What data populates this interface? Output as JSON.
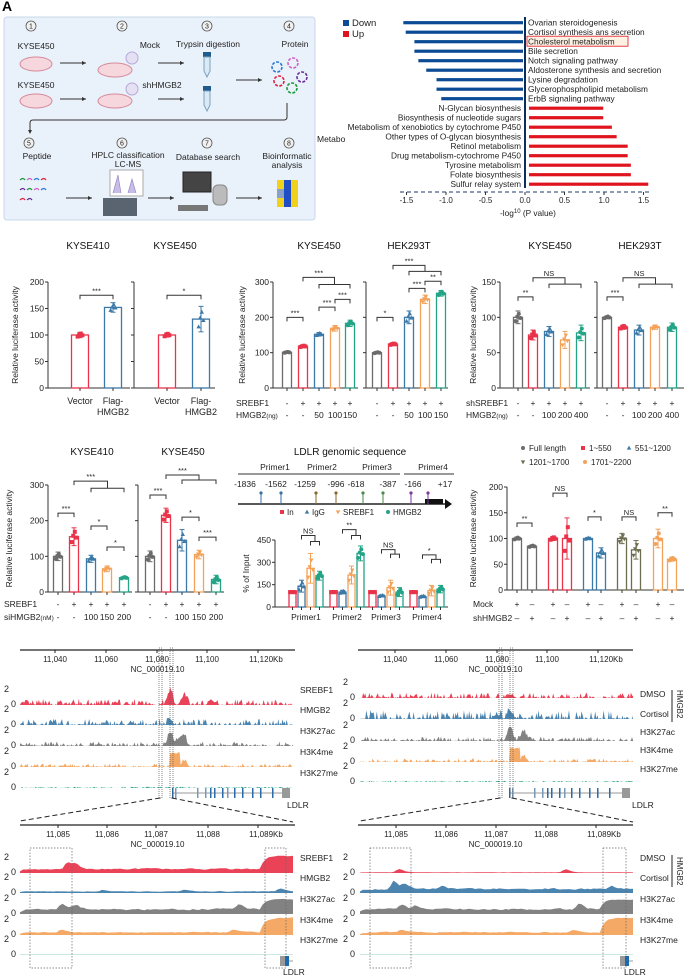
{
  "panel_labels": {
    "a": "A"
  },
  "workflow": {
    "steps": [
      "1",
      "2",
      "3",
      "4",
      "5",
      "6",
      "7",
      "8"
    ],
    "kyse450_top": "KYSE450",
    "kyse450_bottom": "KYSE450",
    "mock": "Mock",
    "shhmgb2": "shHMGB2",
    "trypsin": "Trypsin digestion",
    "protein": "Protein",
    "peptide": "Peptide",
    "hplc_line1": "HPLC classification",
    "hplc_line2": "LC-MS",
    "database": "Database search",
    "bioinfo_line1": "Bioinformatic",
    "bioinfo_line2": "analysis",
    "cut_label": "Metabo"
  },
  "colors": {
    "down": "#0b4a94",
    "up": "#e0141e",
    "grey": "#6b6b6b",
    "red": "#e8334a",
    "blue": "#3b79a8",
    "orange": "#f3a259",
    "teal": "#23a487",
    "olive": "#6d6d50"
  },
  "chart_data": [
    {
      "id": "B",
      "type": "bar",
      "orientation": "horizontal",
      "legend": [
        {
          "name": "Down",
          "color": "#0b4a94"
        },
        {
          "name": "Up",
          "color": "#e0141e"
        }
      ],
      "legend_placement": "top-left",
      "categories": [
        "Ovarian steroidogenesis",
        "Cortisol synthesis ans secretion",
        "Cholesterol metabolism",
        "Bile secretion",
        "Notch signaling pathway",
        "Aldosterone synthesis and secretion",
        "Lysine degradation",
        "Glycerophospholipid metabolism",
        "ErbB signaling pathway",
        "N-Glycan biosynthesis",
        "Biosynthesis of nucleotide sugars",
        "Metabolism of xenobiotics by cytochrome P450",
        "Other types of O-glycan biosynthesis",
        "Retinol metabolism",
        "Drug metabolism-cytochrome P450",
        "Tyrosine metabolism",
        "Folate biosynthesis",
        "Sulfur relay system"
      ],
      "values": [
        -1.54,
        -1.51,
        -1.4,
        -1.4,
        -1.35,
        -1.25,
        -1.12,
        -1.12,
        -1.06,
        0.99,
        0.99,
        1.1,
        1.16,
        1.3,
        1.3,
        1.34,
        1.34,
        1.56
      ],
      "highlight": "Cholesterol metabolism",
      "xticks": [
        "-1.5",
        "-1.0",
        "-0.5",
        "0.0",
        "0.5",
        "1.0",
        "1.5"
      ],
      "xlim": [
        -1.5,
        1.5
      ],
      "xlabel_prefix": "-log",
      "xlabel_sup": "10",
      "xlabel_suffix": " (P value)"
    },
    {
      "id": "C1",
      "type": "bar",
      "title": "KYSE410",
      "ylabel": "Relative luciferase activity",
      "ylim": [
        0,
        200
      ],
      "yticks": [
        "0",
        "50",
        "100",
        "150",
        "200"
      ],
      "categories": [
        "Vector",
        "Flag-HMGB2"
      ],
      "xlabels": [
        [
          "Vector"
        ],
        [
          "Flag-",
          "HMGB2"
        ]
      ],
      "values": [
        100,
        152
      ],
      "errors": [
        5,
        9
      ],
      "colors": [
        "red",
        "blue"
      ],
      "significance": [
        {
          "from": 0,
          "to": 1,
          "label": "***",
          "level": 175
        }
      ]
    },
    {
      "id": "C2",
      "type": "bar",
      "title": "KYSE450",
      "ylim": [
        0,
        200
      ],
      "yticks": [
        "0",
        "50",
        "100",
        "150",
        "200"
      ],
      "categories": [
        "Vector",
        "Flag-HMGB2"
      ],
      "xlabels": [
        [
          "Vector"
        ],
        [
          "Flag-",
          "HMGB2"
        ]
      ],
      "values": [
        100,
        130
      ],
      "errors": [
        4,
        24
      ],
      "colors": [
        "red",
        "blue"
      ],
      "significance": [
        {
          "from": 0,
          "to": 1,
          "label": "*",
          "level": 175
        }
      ]
    },
    {
      "id": "D1",
      "type": "bar",
      "title": "KYSE450",
      "ylabel": "Relative luciferase activity",
      "ylim": [
        0,
        300
      ],
      "yticks": [
        "0",
        "100",
        "200",
        "300"
      ],
      "values": [
        101,
        118,
        152,
        169,
        183
      ],
      "errors": [
        2,
        3,
        5,
        8,
        9
      ],
      "colors": [
        "grey",
        "red",
        "blue",
        "orange",
        "teal"
      ],
      "conditions": [
        {
          "label": "SREBF1",
          "values": [
            "-",
            "+",
            "+",
            "+",
            "+"
          ]
        },
        {
          "label": "HMGB2",
          "label_unit": "(ng)",
          "values": [
            "-",
            "-",
            "50",
            "100",
            "150"
          ]
        }
      ],
      "significance": [
        {
          "from": 0,
          "to": 1,
          "label": "***",
          "level": 200
        },
        {
          "from": 2,
          "to": 3,
          "label": "***",
          "level": 229
        },
        {
          "from": 3,
          "to": 4,
          "label": "***",
          "level": 251
        },
        {
          "from": 1,
          "to": [
            2,
            4
          ],
          "label": "***",
          "level": 313,
          "sub": 293
        }
      ]
    },
    {
      "id": "D2",
      "type": "bar",
      "title": "HEK293T",
      "ylim": [
        0,
        300
      ],
      "yticks": [
        "0",
        "100",
        "200",
        "300"
      ],
      "values": [
        100,
        124,
        200,
        251,
        268
      ],
      "errors": [
        2,
        3,
        18,
        12,
        8
      ],
      "colors": [
        "grey",
        "red",
        "blue",
        "orange",
        "teal"
      ],
      "conditions": [
        {
          "values": [
            "-",
            "+",
            "+",
            "+",
            "+"
          ]
        },
        {
          "values": [
            "-",
            "-",
            "50",
            "100",
            "150"
          ]
        }
      ],
      "significance": [
        {
          "from": 0,
          "to": 1,
          "label": "*",
          "level": 200
        },
        {
          "from": 2,
          "to": 3,
          "label": "***",
          "level": 282
        },
        {
          "from": 3,
          "to": 4,
          "label": "**",
          "level": 302
        },
        {
          "from": 1,
          "to": [
            2,
            4
          ],
          "label": "***",
          "level": 347,
          "sub": 330
        }
      ]
    },
    {
      "id": "E1",
      "type": "bar",
      "title": "KYSE450",
      "ylabel": "Relative luciferase activity",
      "ylim": [
        0,
        150
      ],
      "yticks": [
        "0",
        "50",
        "100",
        "150"
      ],
      "values": [
        100,
        75,
        80,
        68,
        78
      ],
      "errors": [
        9,
        7,
        7,
        12,
        11
      ],
      "colors": [
        "grey",
        "red",
        "blue",
        "orange",
        "teal"
      ],
      "conditions": [
        {
          "label": "shSREBF1",
          "values": [
            "-",
            "+",
            "+",
            "+",
            "+"
          ]
        },
        {
          "label": "HMGB2",
          "label_unit": "(ng)",
          "values": [
            "-",
            "-",
            "100",
            "200",
            "400"
          ]
        }
      ],
      "significance": [
        {
          "from": 0,
          "to": 1,
          "label": "**",
          "level": 129
        },
        {
          "from": 1,
          "to": [
            2,
            4
          ],
          "label": "NS",
          "level": 156,
          "sub": 147
        }
      ]
    },
    {
      "id": "E2",
      "type": "bar",
      "title": "HEK293T",
      "ylim": [
        0,
        150
      ],
      "yticks": [
        "0",
        "50",
        "100",
        "150"
      ],
      "values": [
        100,
        86,
        82,
        86,
        86
      ],
      "errors": [
        2,
        3,
        7,
        3,
        6
      ],
      "colors": [
        "grey",
        "red",
        "blue",
        "orange",
        "teal"
      ],
      "conditions": [
        {
          "values": [
            "-",
            "+",
            "+",
            "+",
            "+"
          ]
        },
        {
          "values": [
            "-",
            "-",
            "100",
            "200",
            "400"
          ]
        }
      ],
      "significance": [
        {
          "from": 0,
          "to": 1,
          "label": "***",
          "level": 129
        },
        {
          "from": 1,
          "to": [
            2,
            4
          ],
          "label": "NS",
          "level": 156,
          "sub": 147
        }
      ]
    },
    {
      "id": "F1",
      "type": "bar",
      "title": "KYSE410",
      "ylabel": "Relative luciferase activity",
      "ylim": [
        0,
        300
      ],
      "yticks": [
        "0",
        "100",
        "200",
        "300"
      ],
      "values": [
        100,
        155,
        93,
        65,
        40
      ],
      "errors": [
        12,
        25,
        10,
        8,
        3
      ],
      "colors": [
        "grey",
        "red",
        "blue",
        "orange",
        "teal"
      ],
      "conditions": [
        {
          "label": "SREBF1",
          "values": [
            "-",
            "+",
            "+",
            "+",
            "+"
          ]
        },
        {
          "label": "siHMGB2",
          "label_unit": "(nM)",
          "values": [
            "-",
            "-",
            "100",
            "150",
            "200"
          ]
        }
      ],
      "significance": [
        {
          "from": 0,
          "to": 1,
          "label": "***",
          "level": 221
        },
        {
          "from": 2,
          "to": 3,
          "label": "*",
          "level": 185
        },
        {
          "from": 3,
          "to": 4,
          "label": "*",
          "level": 126
        },
        {
          "from": 1,
          "to": [
            2,
            4
          ],
          "label": "***",
          "level": 311,
          "sub": 291
        }
      ]
    },
    {
      "id": "F2",
      "type": "bar",
      "title": "KYSE450",
      "ylim": [
        0,
        300
      ],
      "yticks": [
        "0",
        "100",
        "200",
        "300"
      ],
      "values": [
        100,
        215,
        145,
        105,
        35
      ],
      "errors": [
        15,
        20,
        30,
        12,
        12
      ],
      "colors": [
        "grey",
        "red",
        "blue",
        "orange",
        "teal"
      ],
      "conditions": [
        {
          "values": [
            "-",
            "+",
            "+",
            "+",
            "+"
          ]
        },
        {
          "values": [
            "-",
            "-",
            "100",
            "150",
            "200"
          ]
        }
      ],
      "significance": [
        {
          "from": 0,
          "to": 1,
          "label": "***",
          "level": 272
        },
        {
          "from": 2,
          "to": 3,
          "label": "*",
          "level": 210
        },
        {
          "from": 3,
          "to": 4,
          "label": "***",
          "level": 154
        },
        {
          "from": 1,
          "to": [
            2,
            4
          ],
          "label": "***",
          "level": 328,
          "sub": 314
        }
      ]
    },
    {
      "id": "G",
      "type": "bar",
      "ylabel": "% of Input",
      "ylim": [
        0,
        450
      ],
      "yticks": [
        "0",
        "150",
        "300",
        "450"
      ],
      "categories": [
        "Primer1",
        "Primer2",
        "Primer3",
        "Primer4"
      ],
      "series": [
        {
          "name": "In",
          "color": "red",
          "values": [
            100,
            100,
            100,
            100
          ],
          "errors": [
            0,
            0,
            0,
            0
          ]
        },
        {
          "name": "IgG",
          "color": "blue",
          "values": [
            140,
            100,
            75,
            70
          ],
          "errors": [
            40,
            12,
            6,
            6
          ]
        },
        {
          "name": "SREBF1",
          "color": "orange",
          "values": [
            260,
            215,
            130,
            110
          ],
          "errors": [
            100,
            60,
            50,
            35
          ]
        },
        {
          "name": "HMGB2",
          "color": "teal",
          "values": [
            210,
            360,
            100,
            120
          ],
          "errors": [
            30,
            50,
            30,
            25
          ]
        }
      ],
      "legend_placement": "top",
      "significance": [
        {
          "group": 0,
          "label": "NS",
          "level": 480,
          "sub": 440
        },
        {
          "group": 1,
          "label": "**",
          "level": 520,
          "sub": 480
        },
        {
          "group": 2,
          "label": "NS",
          "level": 385,
          "sub": 355
        },
        {
          "group": 3,
          "label": "*",
          "level": 350,
          "sub": 320
        }
      ]
    },
    {
      "id": "H",
      "type": "bar",
      "ylabel": "Relative luciferase activity",
      "ylim": [
        0,
        200
      ],
      "yticks": [
        "0",
        "50",
        "100",
        "150",
        "200"
      ],
      "series": [
        {
          "name": "Full length",
          "color": "grey",
          "marker": "circle",
          "values": [
            100,
            85
          ],
          "errors": [
            3,
            2
          ]
        },
        {
          "name": "1~550",
          "color": "red",
          "marker": "square",
          "values": [
            100,
            100
          ],
          "errors": [
            4,
            40
          ]
        },
        {
          "name": "551~1200",
          "color": "blue",
          "marker": "triangle",
          "values": [
            100,
            72
          ],
          "errors": [
            2,
            10
          ]
        },
        {
          "name": "1201~1700",
          "color": "olive",
          "marker": "triangle-down",
          "values": [
            100,
            78
          ],
          "errors": [
            10,
            18
          ]
        },
        {
          "name": "1701~2200",
          "color": "orange",
          "marker": "half-circle",
          "values": [
            100,
            60
          ],
          "errors": [
            18,
            4
          ]
        }
      ],
      "legend_placement": "top",
      "conditions": [
        {
          "label": "Mock",
          "values": [
            "+",
            "–"
          ]
        },
        {
          "label": "shHMGB2",
          "values": [
            "–",
            "+"
          ]
        }
      ],
      "significance": [
        {
          "pair": 0,
          "label": "**",
          "level": 130
        },
        {
          "pair": 1,
          "label": "NS",
          "level": 188
        },
        {
          "pair": 2,
          "label": "*",
          "level": 142
        },
        {
          "pair": 3,
          "label": "NS",
          "level": 142
        },
        {
          "pair": 4,
          "label": "**",
          "level": 150
        }
      ]
    }
  ],
  "ldlr_diagram": {
    "title": "LDLR genomic sequence",
    "primers": [
      "Primer1",
      "Primer2",
      "Primer3",
      "Primer4"
    ],
    "positions": [
      "-1836",
      "-1562",
      "-1259",
      "-996",
      "-618",
      "-387",
      "-166",
      "+17"
    ]
  },
  "tracks": {
    "ruler_top_ticks": [
      "11,040",
      "11,060",
      "11,080",
      "11,100",
      "11,120Kb"
    ],
    "ruler_zoom_ticks": [
      "11,085",
      "11,086",
      "11,087",
      "11,088",
      "11,089Kb"
    ],
    "chromosome": "NC_000019.10",
    "scale_max": "2",
    "scale_min": "0",
    "left_labels": [
      "SREBF1",
      "HMGB2",
      "H3K27ac",
      "H3K4me",
      "H3K27me"
    ],
    "right_labels": [
      "DMSO",
      "Cortisol",
      "H3K27ac",
      "H3K4me",
      "H3K27me"
    ],
    "right_group_label": "HMGB2",
    "gene": "LDLR"
  }
}
